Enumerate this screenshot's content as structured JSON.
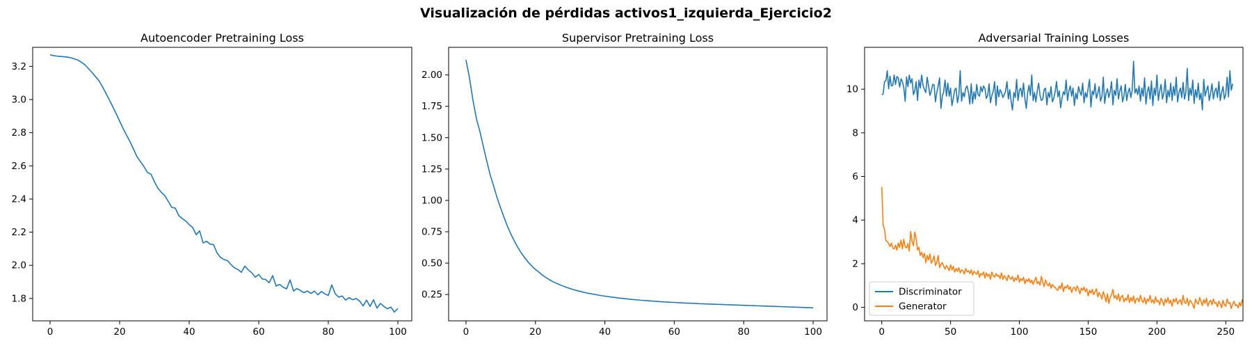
{
  "suptitle": "Visualización de pérdidas activos1_izquierda_Ejercicio2",
  "colors": {
    "blue": "#1f77b4",
    "orange": "#ff7f0e"
  },
  "chart_data": [
    {
      "type": "line",
      "title": "Autoencoder Pretraining Loss",
      "xlabel": "",
      "ylabel": "",
      "xlim": [
        -5,
        104
      ],
      "ylim": [
        1.665,
        3.315
      ],
      "xticks": [
        0,
        20,
        40,
        60,
        80,
        100
      ],
      "yticks": [
        1.8,
        2.0,
        2.2,
        2.4,
        2.6,
        2.8,
        3.0,
        3.2
      ],
      "ytick_labels": [
        "1.8",
        "2.0",
        "2.2",
        "2.4",
        "2.6",
        "2.8",
        "3.0",
        "3.2"
      ],
      "legend": null,
      "series": [
        {
          "name": "Autoencoder",
          "color": "#1f77b4",
          "y": [
            3.27,
            3.265,
            3.262,
            3.26,
            3.258,
            3.256,
            3.252,
            3.245,
            3.238,
            3.225,
            3.21,
            3.188,
            3.165,
            3.14,
            3.115,
            3.08,
            3.04,
            3.0,
            2.958,
            2.915,
            2.87,
            2.825,
            2.785,
            2.745,
            2.7,
            2.655,
            2.625,
            2.595,
            2.56,
            2.55,
            2.505,
            2.465,
            2.44,
            2.42,
            2.385,
            2.35,
            2.345,
            2.3,
            2.282,
            2.268,
            2.245,
            2.228,
            2.185,
            2.208,
            2.135,
            2.145,
            2.128,
            2.125,
            2.075,
            2.048,
            2.035,
            2.028,
            2.005,
            1.985,
            1.975,
            1.958,
            1.995,
            1.972,
            1.955,
            1.928,
            1.945,
            1.918,
            1.914,
            1.895,
            1.938,
            1.875,
            1.885,
            1.868,
            1.858,
            1.912,
            1.845,
            1.86,
            1.848,
            1.835,
            1.845,
            1.83,
            1.845,
            1.822,
            1.842,
            1.828,
            1.818,
            1.882,
            1.828,
            1.808,
            1.815,
            1.79,
            1.805,
            1.792,
            1.8,
            1.785,
            1.755,
            1.79,
            1.752,
            1.792,
            1.742,
            1.77,
            1.752,
            1.738,
            1.748,
            1.718,
            1.74
          ]
        }
      ]
    },
    {
      "type": "line",
      "title": "Supervisor Pretraining Loss",
      "xlabel": "",
      "ylabel": "",
      "xlim": [
        -5,
        104
      ],
      "ylim": [
        0.04,
        2.22
      ],
      "xticks": [
        0,
        20,
        40,
        60,
        80,
        100
      ],
      "yticks": [
        0.25,
        0.5,
        0.75,
        1.0,
        1.25,
        1.5,
        1.75,
        2.0
      ],
      "ytick_labels": [
        "0.25",
        "0.50",
        "0.75",
        "1.00",
        "1.25",
        "1.50",
        "1.75",
        "2.00"
      ],
      "legend": null,
      "series": [
        {
          "name": "Supervisor",
          "color": "#1f77b4",
          "y": [
            2.12,
            1.978,
            1.8,
            1.652,
            1.55,
            1.43,
            1.312,
            1.2,
            1.112,
            1.018,
            0.938,
            0.862,
            0.79,
            0.728,
            0.672,
            0.622,
            0.578,
            0.54,
            0.505,
            0.476,
            0.45,
            0.428,
            0.405,
            0.386,
            0.368,
            0.353,
            0.34,
            0.328,
            0.317,
            0.306,
            0.297,
            0.289,
            0.281,
            0.274,
            0.267,
            0.261,
            0.256,
            0.251,
            0.246,
            0.241,
            0.237,
            0.233,
            0.229,
            0.226,
            0.222,
            0.219,
            0.216,
            0.213,
            0.21,
            0.208,
            0.205,
            0.203,
            0.201,
            0.199,
            0.197,
            0.195,
            0.193,
            0.191,
            0.19,
            0.188,
            0.187,
            0.185,
            0.184,
            0.182,
            0.181,
            0.18,
            0.179,
            0.177,
            0.176,
            0.175,
            0.174,
            0.173,
            0.172,
            0.171,
            0.17,
            0.169,
            0.168,
            0.167,
            0.166,
            0.165,
            0.164,
            0.163,
            0.162,
            0.161,
            0.16,
            0.159,
            0.158,
            0.157,
            0.156,
            0.155,
            0.154,
            0.153,
            0.152,
            0.151,
            0.15,
            0.149,
            0.148,
            0.147,
            0.146,
            0.145,
            0.144
          ]
        }
      ]
    },
    {
      "type": "line",
      "title": "Adversarial Training Losses",
      "xlabel": "",
      "ylabel": "",
      "xlim": [
        -12.5,
        262.5
      ],
      "ylim": [
        -0.62,
        11.92
      ],
      "xticks": [
        0,
        50,
        100,
        150,
        200,
        250
      ],
      "yticks": [
        0,
        2,
        4,
        6,
        8,
        10
      ],
      "ytick_labels": [
        "0",
        "2",
        "4",
        "6",
        "8",
        "10"
      ],
      "legend": {
        "position": "lower-left",
        "entries": [
          "Discriminator",
          "Generator"
        ]
      },
      "series": [
        {
          "name": "Discriminator",
          "color": "#1f77b4",
          "y": [
            9.75,
            9.78,
            10.35,
            10.38,
            10.85,
            10.02,
            10.6,
            10.15,
            10.18,
            10.65,
            10.22,
            10.58,
            10.52,
            10.1,
            10.48,
            10.35,
            10.08,
            9.45,
            10.56,
            10.12,
            10.65,
            10.28,
            10.48,
            9.75,
            9.92,
            10.35,
            9.48,
            10.42,
            10.05,
            10.65,
            10.18,
            9.98,
            9.85,
            10.55,
            10.15,
            9.72,
            9.92,
            10.22,
            10.2,
            9.42,
            9.85,
            10.15,
            10.52,
            9.12,
            9.68,
            9.88,
            10.42,
            9.68,
            10.28,
            9.68,
            10.05,
            9.25,
            9.58,
            9.98,
            10.05,
            9.38,
            9.72,
            10.85,
            9.45,
            9.85,
            9.65,
            10.05,
            10.15,
            9.85,
            9.32,
            10.25,
            9.35,
            9.88,
            9.55,
            10.22,
            9.75,
            9.68,
            10.12,
            9.88,
            10.15,
            10.02,
            9.58,
            9.72,
            10.25,
            9.38,
            9.72,
            9.9,
            10.35,
            9.25,
            10.15,
            9.65,
            9.98,
            9.85,
            9.62,
            9.75,
            9.92,
            10.35,
            9.55,
            9.98,
            9.45,
            9.05,
            9.85,
            9.62,
            10.45,
            9.48,
            9.95,
            10.05,
            9.65,
            10.28,
            9.58,
            9.12,
            9.82,
            10.18,
            9.72,
            10.65,
            9.48,
            9.85,
            9.42,
            9.92,
            10.28,
            9.72,
            9.48,
            9.55,
            9.98,
            10.05,
            9.28,
            9.85,
            9.62,
            10.12,
            9.42,
            9.58,
            9.88,
            10.35,
            9.65,
            9.92,
            9.15,
            9.58,
            9.88,
            9.75,
            10.42,
            9.48,
            9.92,
            10.15,
            9.68,
            10.05,
            9.25,
            9.82,
            9.55,
            10.12,
            9.88,
            9.72,
            10.28,
            9.38,
            9.85,
            9.62,
            10.05,
            10.45,
            9.18,
            9.92,
            9.75,
            10.25,
            9.58,
            9.82,
            10.12,
            9.45,
            9.68,
            10.55,
            9.35,
            9.82,
            10.02,
            9.62,
            9.88,
            10.35,
            9.28,
            9.95,
            9.72,
            10.48,
            9.55,
            9.92,
            10.15,
            9.42,
            9.68,
            10.22,
            9.48,
            9.85,
            10.05,
            9.62,
            9.95,
            11.28,
            9.82,
            10.02,
            9.75,
            10.15,
            9.45,
            10.05,
            9.68,
            10.52,
            9.32,
            9.88,
            10.12,
            9.55,
            10.38,
            9.25,
            10.05,
            9.72,
            10.65,
            9.48,
            9.92,
            10.22,
            9.55,
            9.82,
            10.45,
            9.38,
            9.95,
            9.65,
            10.28,
            9.48,
            10.12,
            9.72,
            10.55,
            9.42,
            9.85,
            10.05,
            9.62,
            10.32,
            9.55,
            9.85,
            10.95,
            9.48,
            10.05,
            9.72,
            10.42,
            9.35,
            9.98,
            9.62,
            10.28,
            9.52,
            9.82,
            9.05,
            10.45,
            9.68,
            9.95,
            10.15,
            9.48,
            9.82,
            10.25,
            9.55,
            9.92,
            10.05,
            9.62,
            10.35,
            9.48,
            9.85,
            10.12,
            9.55,
            9.78,
            10.55,
            9.65,
            10.85,
            9.95
          ],
          "y_extra": [
            10.25
          ]
        },
        {
          "name": "Generator",
          "color": "#ff7f0e",
          "y": [
            5.52,
            3.78,
            3.58,
            3.05,
            3.02,
            2.92,
            2.78,
            2.95,
            2.72,
            2.68,
            2.85,
            2.62,
            2.95,
            2.75,
            3.08,
            2.68,
            3.12,
            2.78,
            2.72,
            2.92,
            2.58,
            3.48,
            3.02,
            2.82,
            3.45,
            3.15,
            2.62,
            2.75,
            2.38,
            2.52,
            2.28,
            2.48,
            2.05,
            2.38,
            2.18,
            2.45,
            2.02,
            2.15,
            2.35,
            1.92,
            2.05,
            2.38,
            1.82,
            1.98,
            2.05,
            1.88,
            1.75,
            1.92,
            1.82,
            1.68,
            1.95,
            1.72,
            1.88,
            1.62,
            1.78,
            1.65,
            1.82,
            1.58,
            1.72,
            1.68,
            1.52,
            1.78,
            1.62,
            1.68,
            1.55,
            1.72,
            1.48,
            1.65,
            1.58,
            1.52,
            1.68,
            1.38,
            1.55,
            1.48,
            1.62,
            1.35,
            1.58,
            1.42,
            1.52,
            1.28,
            1.62,
            1.45,
            1.38,
            1.55,
            1.42,
            1.48,
            1.32,
            1.58,
            1.28,
            1.45,
            1.38,
            1.22,
            1.48,
            1.35,
            1.28,
            1.42,
            1.18,
            1.35,
            1.25,
            1.48,
            1.15,
            1.32,
            1.22,
            1.38,
            1.08,
            1.28,
            1.18,
            1.32,
            1.12,
            1.25,
            1.05,
            1.22,
            1.38,
            1.08,
            1.18,
            1.02,
            1.42,
            1.15,
            0.95,
            1.25,
            1.08,
            0.98,
            1.12,
            0.88,
            1.05,
            0.95,
            0.92,
            0.82,
            0.78,
            0.98,
            0.85,
            1.12,
            0.72,
            0.95,
            0.88,
            1.02,
            0.82,
            0.95,
            0.68,
            0.88,
            0.92,
            0.75,
            0.98,
            0.82,
            0.62,
            0.88,
            0.78,
            0.92,
            0.72,
            0.85,
            0.52,
            0.78,
            0.65,
            0.82,
            0.58,
            0.72,
            0.85,
            0.48,
            0.68,
            0.55,
            0.38,
            0.72,
            0.52,
            0.25,
            0.62,
            0.18,
            0.45,
            0.58,
            0.82,
            0.42,
            0.55,
            0.35,
            0.62,
            0.28,
            0.48,
            0.55,
            0.25,
            0.42,
            0.32,
            0.58,
            0.22,
            0.45,
            0.28,
            0.52,
            0.18,
            0.38,
            0.42,
            0.25,
            0.55,
            0.32,
            0.22,
            0.45,
            0.15,
            0.38,
            0.28,
            0.55,
            0.22,
            0.35,
            0.18,
            0.48,
            0.25,
            0.32,
            0.12,
            0.42,
            0.28,
            0.08,
            0.38,
            0.22,
            0.45,
            0.18,
            0.32,
            0.05,
            0.38,
            0.25,
            0.42,
            0.15,
            0.28,
            0.35,
            0.12,
            0.55,
            0.22,
            0.18,
            0.42,
            0.08,
            0.32,
            0.25,
            0.12,
            -0.05,
            0.38,
            0.22,
            0.15,
            0.45,
            0.28,
            0.08,
            0.35,
            0.18,
            0.42,
            0.05,
            0.25,
            0.32,
            0.12,
            0.38,
            0.18,
            0.22,
            0.02,
            0.28,
            0.15,
            -0.02,
            0.32,
            0.12,
            0.05,
            0.38,
            0.18,
            0.22,
            -0.05,
            0.15,
            0.28,
            0.08,
            0.12,
            -0.02,
            0.22,
            0.05,
            0.35,
            0.12
          ],
          "y_extra": [
            0.28
          ]
        }
      ]
    }
  ]
}
